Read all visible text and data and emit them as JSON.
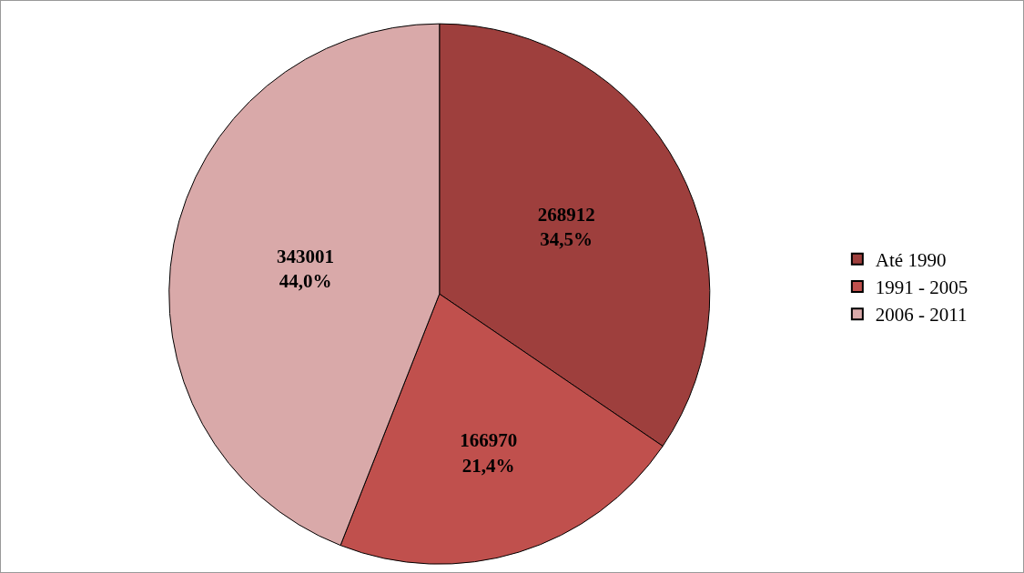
{
  "chart_data": {
    "type": "pie",
    "categories": [
      "Até 1990",
      "1991 - 2005",
      "2006 - 2011"
    ],
    "values": [
      268912,
      166970,
      343001
    ],
    "colors": [
      "#9e3f3d",
      "#c0504d",
      "#d9a9a9"
    ],
    "value_labels": [
      "268912\n34,5%",
      "166970\n21,4%",
      "343001\n44,0%"
    ],
    "legend": "right"
  }
}
